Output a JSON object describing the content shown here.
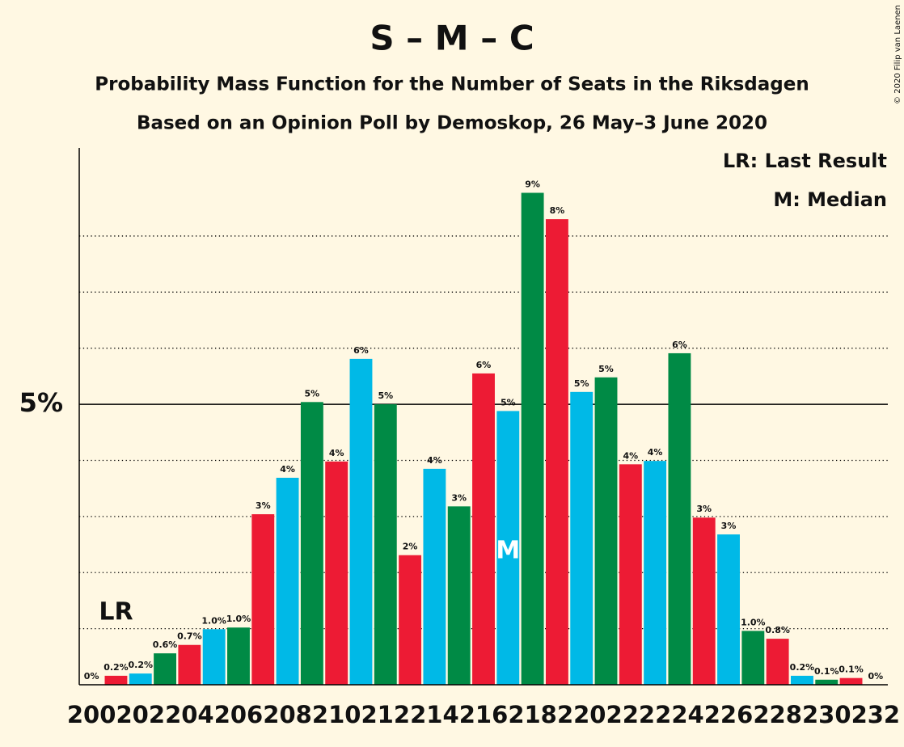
{
  "chart_data": {
    "type": "bar",
    "title": "S – M – C",
    "subtitle": [
      "Probability Mass Function for the Number of Seats in the Riksdagen",
      "Based on an Opinion Poll by Demoskop, 26 May–3 June 2020"
    ],
    "x": [
      200,
      201,
      202,
      203,
      204,
      205,
      206,
      207,
      208,
      209,
      210,
      211,
      212,
      213,
      214,
      215,
      216,
      217,
      218,
      219,
      220,
      221,
      222,
      223,
      224,
      225,
      226,
      227,
      228,
      229,
      230,
      231,
      232
    ],
    "values": [
      0,
      0.16,
      0.2,
      0.56,
      0.71,
      0.99,
      1.02,
      3.04,
      3.69,
      5.04,
      3.98,
      5.81,
      5.0,
      2.31,
      3.85,
      3.18,
      5.55,
      4.88,
      8.77,
      8.3,
      5.22,
      5.48,
      3.93,
      3.99,
      5.91,
      2.98,
      2.68,
      0.96,
      0.82,
      0.16,
      0.09,
      0.12,
      0
    ],
    "value_labels": [
      "0%",
      "0.2%",
      "0.2%",
      "0.6%",
      "0.7%",
      "1.0%",
      "1.0%",
      "3%",
      "4%",
      "5%",
      "4%",
      "6%",
      "5%",
      "2%",
      "4%",
      "3%",
      "6%",
      "5%",
      "9%",
      "8%",
      "5%",
      "5%",
      "4%",
      "4%",
      "6%",
      "3%",
      "3%",
      "1.0%",
      "0.8%",
      "0.2%",
      "0.1%",
      "0.1%",
      "0%"
    ],
    "colors": [
      "#008a45",
      "#ed1b34",
      "#00b9e7"
    ],
    "xlim": [
      199.5,
      232.5
    ],
    "xticks": [
      200,
      202,
      204,
      206,
      208,
      210,
      212,
      214,
      216,
      218,
      220,
      222,
      224,
      226,
      228,
      230,
      232
    ],
    "ylim": [
      0,
      9.57
    ],
    "yticks": [
      {
        "value": 5,
        "label": "5%"
      }
    ],
    "minor_gridlines": [
      1,
      2,
      3,
      4,
      6,
      7,
      8
    ],
    "annotations": [
      {
        "text": "LR",
        "x": 201
      },
      {
        "text": "M",
        "x": 217
      }
    ],
    "legend": [
      "LR: Last Result",
      "M: Median"
    ],
    "copyright": "© 2020 Filip van Laenen"
  }
}
